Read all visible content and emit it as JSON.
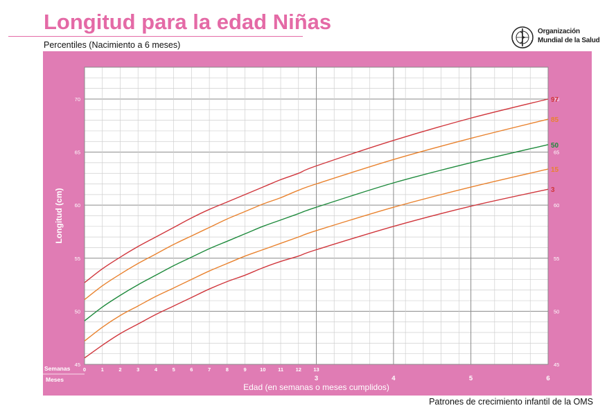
{
  "title": "Longitud para la edad Niñas",
  "subtitle": "Percentiles (Nacimiento a 6 meses)",
  "logo": {
    "line1": "Organización",
    "line2": "Mundial de la Salud",
    "emblem": "who-emblem"
  },
  "footer": "Patrones de crecimiento infantil de la OMS",
  "colors": {
    "panel": "#e07cb4",
    "title": "#e46aa6",
    "p97": "#d0363c",
    "p85": "#e9822e",
    "p50": "#1e8a3c",
    "p15": "#e9822e",
    "p3": "#d0363c"
  },
  "chart_data": {
    "type": "line",
    "xlabel": "Edad (en semanas o meses cumplidos)",
    "ylabel": "Longitud (cm)",
    "x_unit": "weeks",
    "xlim": [
      0,
      26
    ],
    "ylim": [
      45,
      73
    ],
    "weeks_label": "Semanas",
    "months_label": "Meses",
    "week_ticks": [
      "0",
      "1",
      "2",
      "3",
      "4",
      "5",
      "6",
      "7",
      "8",
      "9",
      "10",
      "11",
      "12",
      "13"
    ],
    "month_ticks": [
      {
        "week": 13,
        "label": "3"
      },
      {
        "week": 17.33,
        "label": "4"
      },
      {
        "week": 21.67,
        "label": "5"
      },
      {
        "week": 26,
        "label": "6"
      }
    ],
    "y_ticks": [
      45,
      50,
      55,
      60,
      65,
      70
    ],
    "grid": true,
    "x": [
      0,
      1,
      2,
      3,
      4,
      5,
      6,
      7,
      8,
      9,
      10,
      11,
      12,
      13,
      17.33,
      21.67,
      26
    ],
    "series": [
      {
        "name": "97",
        "values": [
          52.7,
          54.0,
          55.1,
          56.1,
          57.0,
          57.9,
          58.8,
          59.6,
          60.3,
          61.0,
          61.7,
          62.4,
          63.0,
          63.7,
          66.1,
          68.2,
          70.0
        ]
      },
      {
        "name": "85",
        "values": [
          51.1,
          52.4,
          53.5,
          54.5,
          55.4,
          56.3,
          57.1,
          57.9,
          58.7,
          59.4,
          60.1,
          60.7,
          61.4,
          62.0,
          64.3,
          66.3,
          68.1
        ]
      },
      {
        "name": "50",
        "values": [
          49.1,
          50.4,
          51.5,
          52.5,
          53.4,
          54.3,
          55.1,
          55.9,
          56.6,
          57.3,
          58.0,
          58.6,
          59.2,
          59.8,
          62.1,
          64.0,
          65.7
        ]
      },
      {
        "name": "15",
        "values": [
          47.2,
          48.5,
          49.6,
          50.5,
          51.4,
          52.2,
          53.0,
          53.8,
          54.5,
          55.2,
          55.8,
          56.4,
          57.0,
          57.6,
          59.8,
          61.7,
          63.4
        ]
      },
      {
        "name": "3",
        "values": [
          45.6,
          46.8,
          47.9,
          48.8,
          49.7,
          50.5,
          51.3,
          52.1,
          52.8,
          53.4,
          54.1,
          54.7,
          55.2,
          55.8,
          58.0,
          59.9,
          61.5
        ]
      }
    ]
  }
}
